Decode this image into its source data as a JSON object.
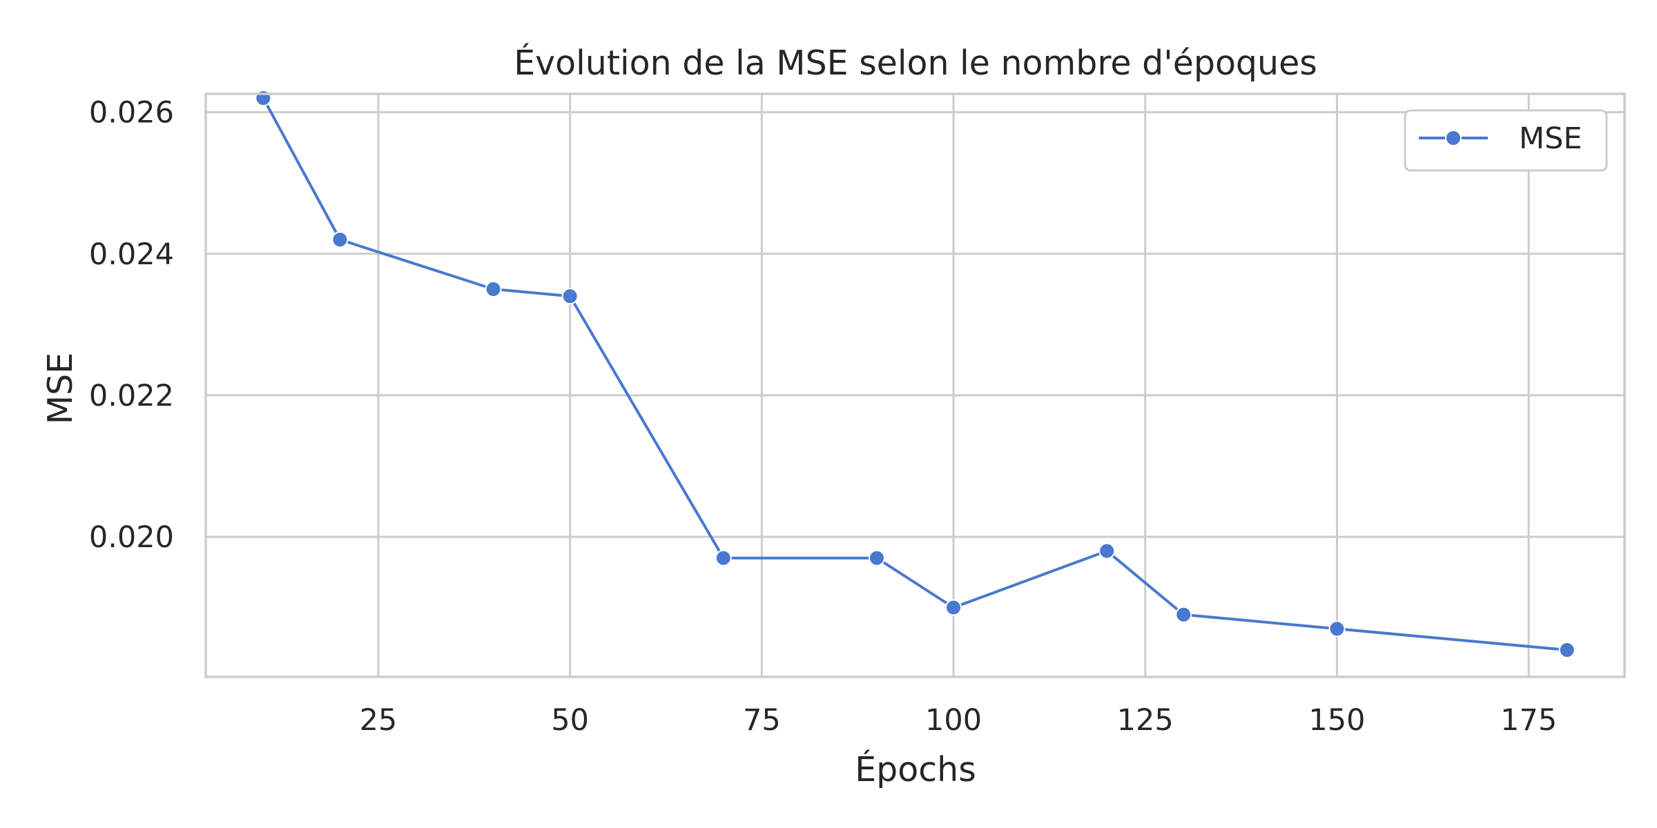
{
  "chart_data": {
    "type": "line",
    "title": "Évolution de la MSE selon le nombre d'époques",
    "xlabel": "Épochs",
    "ylabel": "MSE",
    "xlim": [
      2.5,
      187.5
    ],
    "ylim": [
      0.01802,
      0.02626
    ],
    "x_ticks": [
      25,
      50,
      75,
      100,
      125,
      150,
      175
    ],
    "x_tick_labels": [
      "25",
      "50",
      "75",
      "100",
      "125",
      "150",
      "175"
    ],
    "y_ticks": [
      0.02,
      0.022,
      0.024,
      0.026
    ],
    "y_tick_labels": [
      "0.020",
      "0.022",
      "0.024",
      "0.026"
    ],
    "grid": true,
    "legend": {
      "position": "top-right",
      "entries": [
        "MSE"
      ]
    },
    "series": [
      {
        "name": "MSE",
        "color": "#4878cf",
        "marker": "circle",
        "x": [
          10,
          20,
          40,
          50,
          70,
          90,
          100,
          120,
          130,
          150,
          180
        ],
        "y": [
          0.0262,
          0.0242,
          0.0235,
          0.0234,
          0.0197,
          0.0197,
          0.019,
          0.0198,
          0.0189,
          0.0187,
          0.0184
        ]
      }
    ]
  }
}
